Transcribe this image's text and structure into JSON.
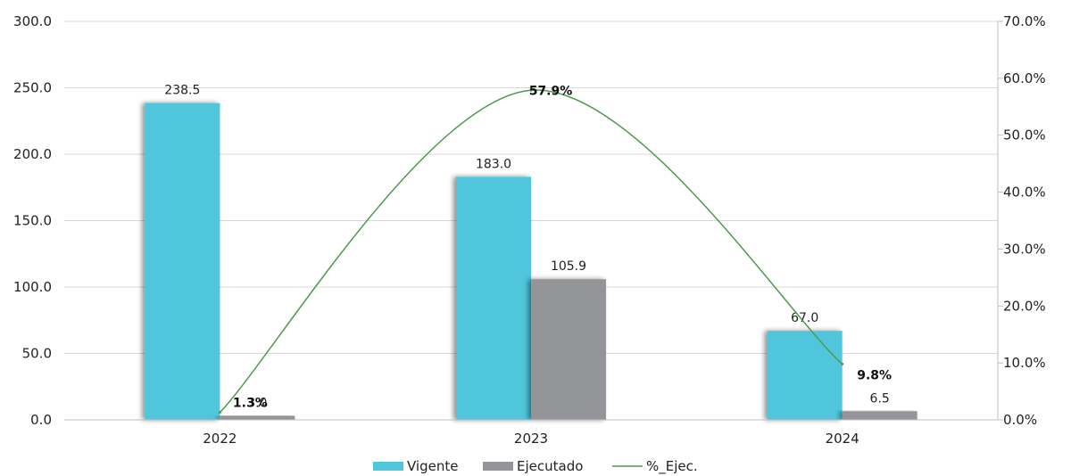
{
  "chart_data": {
    "type": "bar",
    "categories": [
      "2022",
      "2023",
      "2024"
    ],
    "series": [
      {
        "name": "Vigente",
        "kind": "bar",
        "axis": "left",
        "color": "#4FC6DB",
        "values": [
          238.5,
          183.0,
          67.0
        ],
        "labels": [
          "238.5",
          "183.0",
          "67.0"
        ]
      },
      {
        "name": "Ejecutado",
        "kind": "bar",
        "axis": "left",
        "color": "#939598",
        "values": [
          3.0,
          105.9,
          6.5
        ],
        "labels": [
          "3.0",
          "105.9",
          "6.5"
        ]
      },
      {
        "name": "%_Ejec.",
        "kind": "line",
        "axis": "right",
        "color": "#4E9A4E",
        "values": [
          1.3,
          57.9,
          9.8
        ],
        "labels": [
          "1.3%",
          "57.9%",
          "9.8%"
        ]
      }
    ],
    "y_left": {
      "range": [
        0,
        300
      ],
      "ticks": [
        "0.0",
        "50.0",
        "100.0",
        "150.0",
        "200.0",
        "250.0",
        "300.0"
      ]
    },
    "y_right": {
      "range": [
        0,
        70
      ],
      "ticks": [
        "0.0%",
        "10.0%",
        "20.0%",
        "30.0%",
        "40.0%",
        "50.0%",
        "60.0%",
        "70.0%"
      ]
    },
    "grid": true,
    "legend_position": "bottom"
  }
}
